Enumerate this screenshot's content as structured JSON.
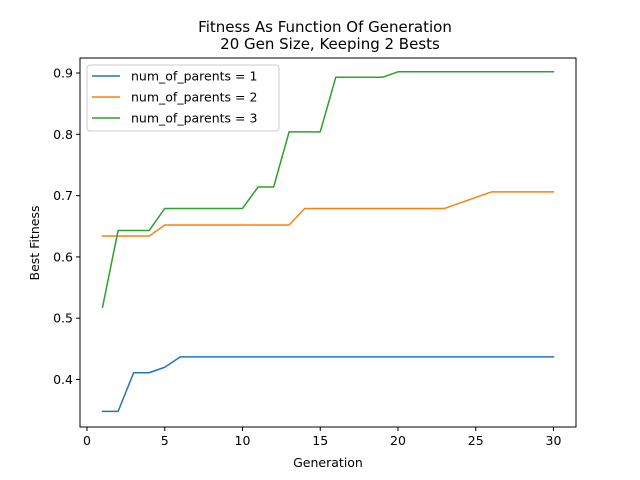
{
  "chart_data": {
    "type": "line",
    "title": "Fitness As Function Of Generation",
    "subtitle": "20 Gen Size, Keeping 2 Bests",
    "xlabel": "Generation",
    "ylabel": "Best Fitness",
    "xlim": [
      -0.45,
      31.45
    ],
    "ylim": [
      0.3225,
      0.9245
    ],
    "xticks": [
      0,
      5,
      10,
      15,
      20,
      25,
      30
    ],
    "yticks": [
      0.4,
      0.5,
      0.6,
      0.7,
      0.8,
      0.9
    ],
    "legend_position": "top-left",
    "grid": false,
    "x": [
      1,
      2,
      3,
      4,
      5,
      6,
      7,
      8,
      9,
      10,
      11,
      12,
      13,
      14,
      15,
      16,
      17,
      18,
      19,
      20,
      21,
      22,
      23,
      24,
      25,
      26,
      27,
      28,
      29,
      30
    ],
    "series": [
      {
        "name": "num_of_parents = 1",
        "color": "#1f77b4",
        "values": [
          0.348,
          0.348,
          0.411,
          0.411,
          0.42,
          0.437,
          0.437,
          0.437,
          0.437,
          0.437,
          0.437,
          0.437,
          0.437,
          0.437,
          0.437,
          0.437,
          0.437,
          0.437,
          0.437,
          0.437,
          0.437,
          0.437,
          0.437,
          0.437,
          0.437,
          0.437,
          0.437,
          0.437,
          0.437,
          0.437
        ]
      },
      {
        "name": "num_of_parents = 2",
        "color": "#ff7f0e",
        "values": [
          0.634,
          0.634,
          0.634,
          0.634,
          0.652,
          0.652,
          0.652,
          0.652,
          0.652,
          0.652,
          0.652,
          0.652,
          0.652,
          0.679,
          0.679,
          0.679,
          0.679,
          0.679,
          0.679,
          0.679,
          0.679,
          0.679,
          0.679,
          0.688,
          0.697,
          0.706,
          0.706,
          0.706,
          0.706,
          0.706
        ]
      },
      {
        "name": "num_of_parents = 3",
        "color": "#2ca02c",
        "values": [
          0.518,
          0.643,
          0.643,
          0.643,
          0.679,
          0.679,
          0.679,
          0.679,
          0.679,
          0.679,
          0.714,
          0.714,
          0.804,
          0.804,
          0.804,
          0.893,
          0.893,
          0.893,
          0.893,
          0.902,
          0.902,
          0.902,
          0.902,
          0.902,
          0.902,
          0.902,
          0.902,
          0.902,
          0.902,
          0.902
        ]
      }
    ]
  }
}
